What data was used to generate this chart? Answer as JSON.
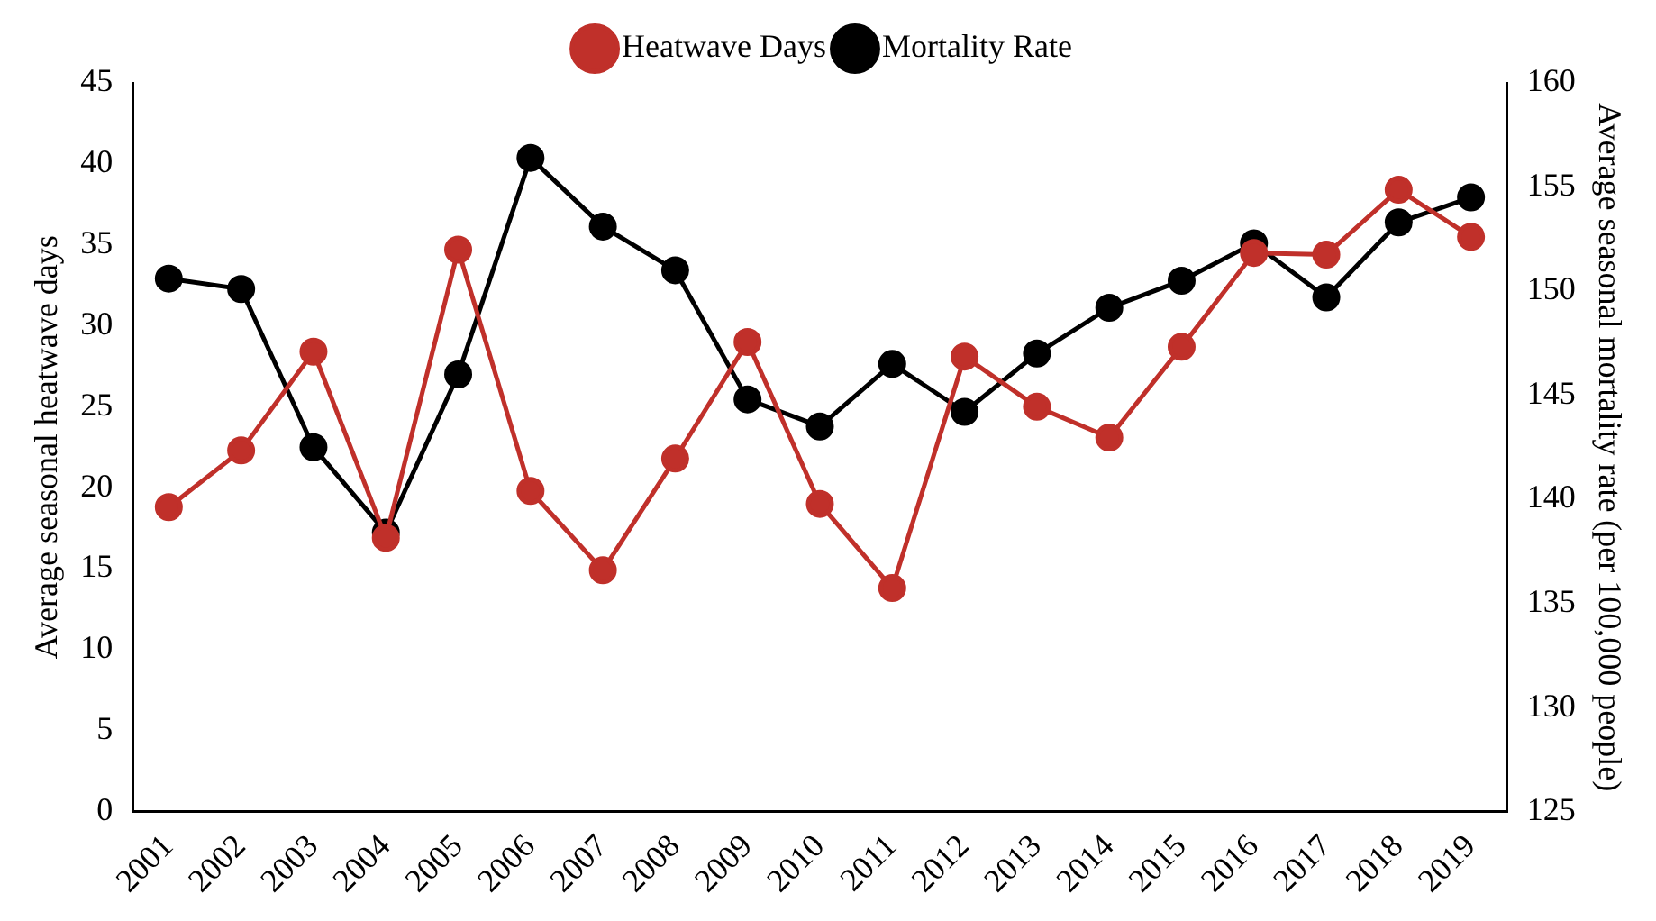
{
  "chart_data": {
    "type": "line",
    "categories": [
      "2001",
      "2002",
      "2003",
      "2004",
      "2005",
      "2006",
      "2007",
      "2008",
      "2009",
      "2010",
      "2011",
      "2012",
      "2013",
      "2014",
      "2015",
      "2016",
      "2017",
      "2018",
      "2019"
    ],
    "ylabel": "Average seasonal heatwave days",
    "y2label": "Average seasonal mortality rate (per 100,000 people)",
    "series": [
      {
        "name": "Heatwave Days",
        "color": "#c0302a",
        "values": [
          18.8,
          22.3,
          28.4,
          16.9,
          34.7,
          19.8,
          14.9,
          21.8,
          29.0,
          19.0,
          13.8,
          28.1,
          25.0,
          23.1,
          28.7,
          34.5,
          34.4,
          38.4,
          35.5
        ]
      },
      {
        "name": "Mortality Rate",
        "color": "#000000",
        "axis": "y2",
        "values": [
          150.6,
          150.1,
          142.5,
          138.4,
          146.0,
          156.4,
          153.1,
          151.0,
          144.8,
          143.5,
          146.5,
          144.2,
          147.0,
          149.2,
          150.5,
          152.3,
          149.7,
          153.3,
          154.5
        ]
      }
    ],
    "ylim": [
      0,
      45
    ],
    "yticks": [
      0,
      5,
      10,
      15,
      20,
      25,
      30,
      35,
      40,
      45
    ],
    "y2lim": [
      125,
      160
    ],
    "y2ticks": [
      125,
      130,
      135,
      140,
      145,
      150,
      155,
      160
    ],
    "grid": false,
    "legend": "top",
    "marker": "circle",
    "line_style": "solid"
  }
}
